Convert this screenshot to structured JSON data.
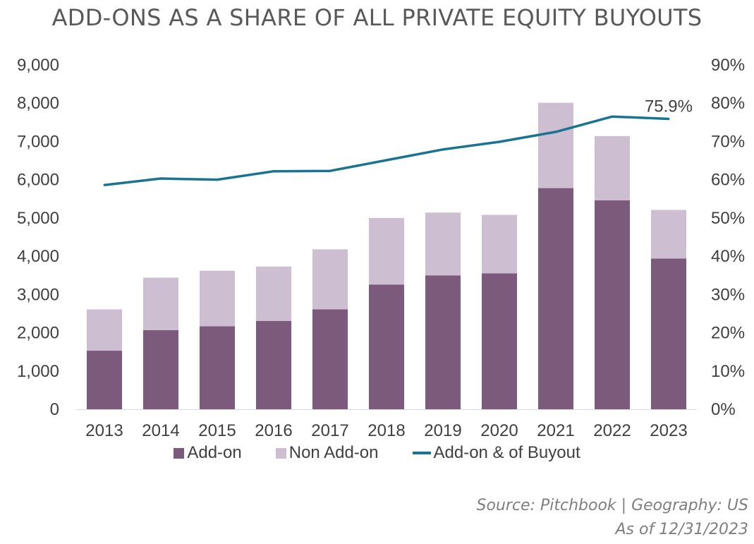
{
  "title": "ADD-ONS AS A SHARE OF ALL PRIVATE EQUITY BUYOUTS",
  "source_line": "Source: Pitchbook | Geography: US",
  "asof_line": "As of 12/31/2023",
  "colors": {
    "addon": "#7b5a7c",
    "nonaddon": "#cdbfd1",
    "line": "#1a7391",
    "text": "#404040"
  },
  "legend": {
    "addon": "Add-on",
    "nonaddon": "Non Add-on",
    "line": "Add-on & of Buyout"
  },
  "chart_data": {
    "type": "bar",
    "stacked": true,
    "categories": [
      "2013",
      "2014",
      "2015",
      "2016",
      "2017",
      "2018",
      "2019",
      "2020",
      "2021",
      "2022",
      "2023"
    ],
    "series": [
      {
        "name": "Add-on",
        "axis": "left",
        "values": [
          1530,
          2070,
          2170,
          2310,
          2610,
          3260,
          3500,
          3550,
          5780,
          5460,
          3940
        ]
      },
      {
        "name": "Non Add-on",
        "axis": "left",
        "values": [
          1080,
          1370,
          1450,
          1420,
          1570,
          1740,
          1640,
          1530,
          2230,
          1680,
          1270
        ]
      },
      {
        "name": "Add-on & of Buyout",
        "type": "line",
        "axis": "right",
        "unit": "%",
        "values": [
          58.6,
          60.3,
          60.0,
          62.2,
          62.3,
          65.1,
          67.9,
          69.9,
          72.5,
          76.5,
          75.9
        ]
      }
    ],
    "annotation": "75.9%",
    "y_left": {
      "min": 0,
      "max": 9000,
      "ticks": [
        "0",
        "1,000",
        "2,000",
        "3,000",
        "4,000",
        "5,000",
        "6,000",
        "7,000",
        "8,000",
        "9,000"
      ]
    },
    "y_right": {
      "min": 0,
      "max": 90,
      "ticks": [
        "0%",
        "10%",
        "20%",
        "30%",
        "40%",
        "50%",
        "60%",
        "70%",
        "80%",
        "90%"
      ]
    },
    "legend_position": "bottom",
    "grid": false
  }
}
